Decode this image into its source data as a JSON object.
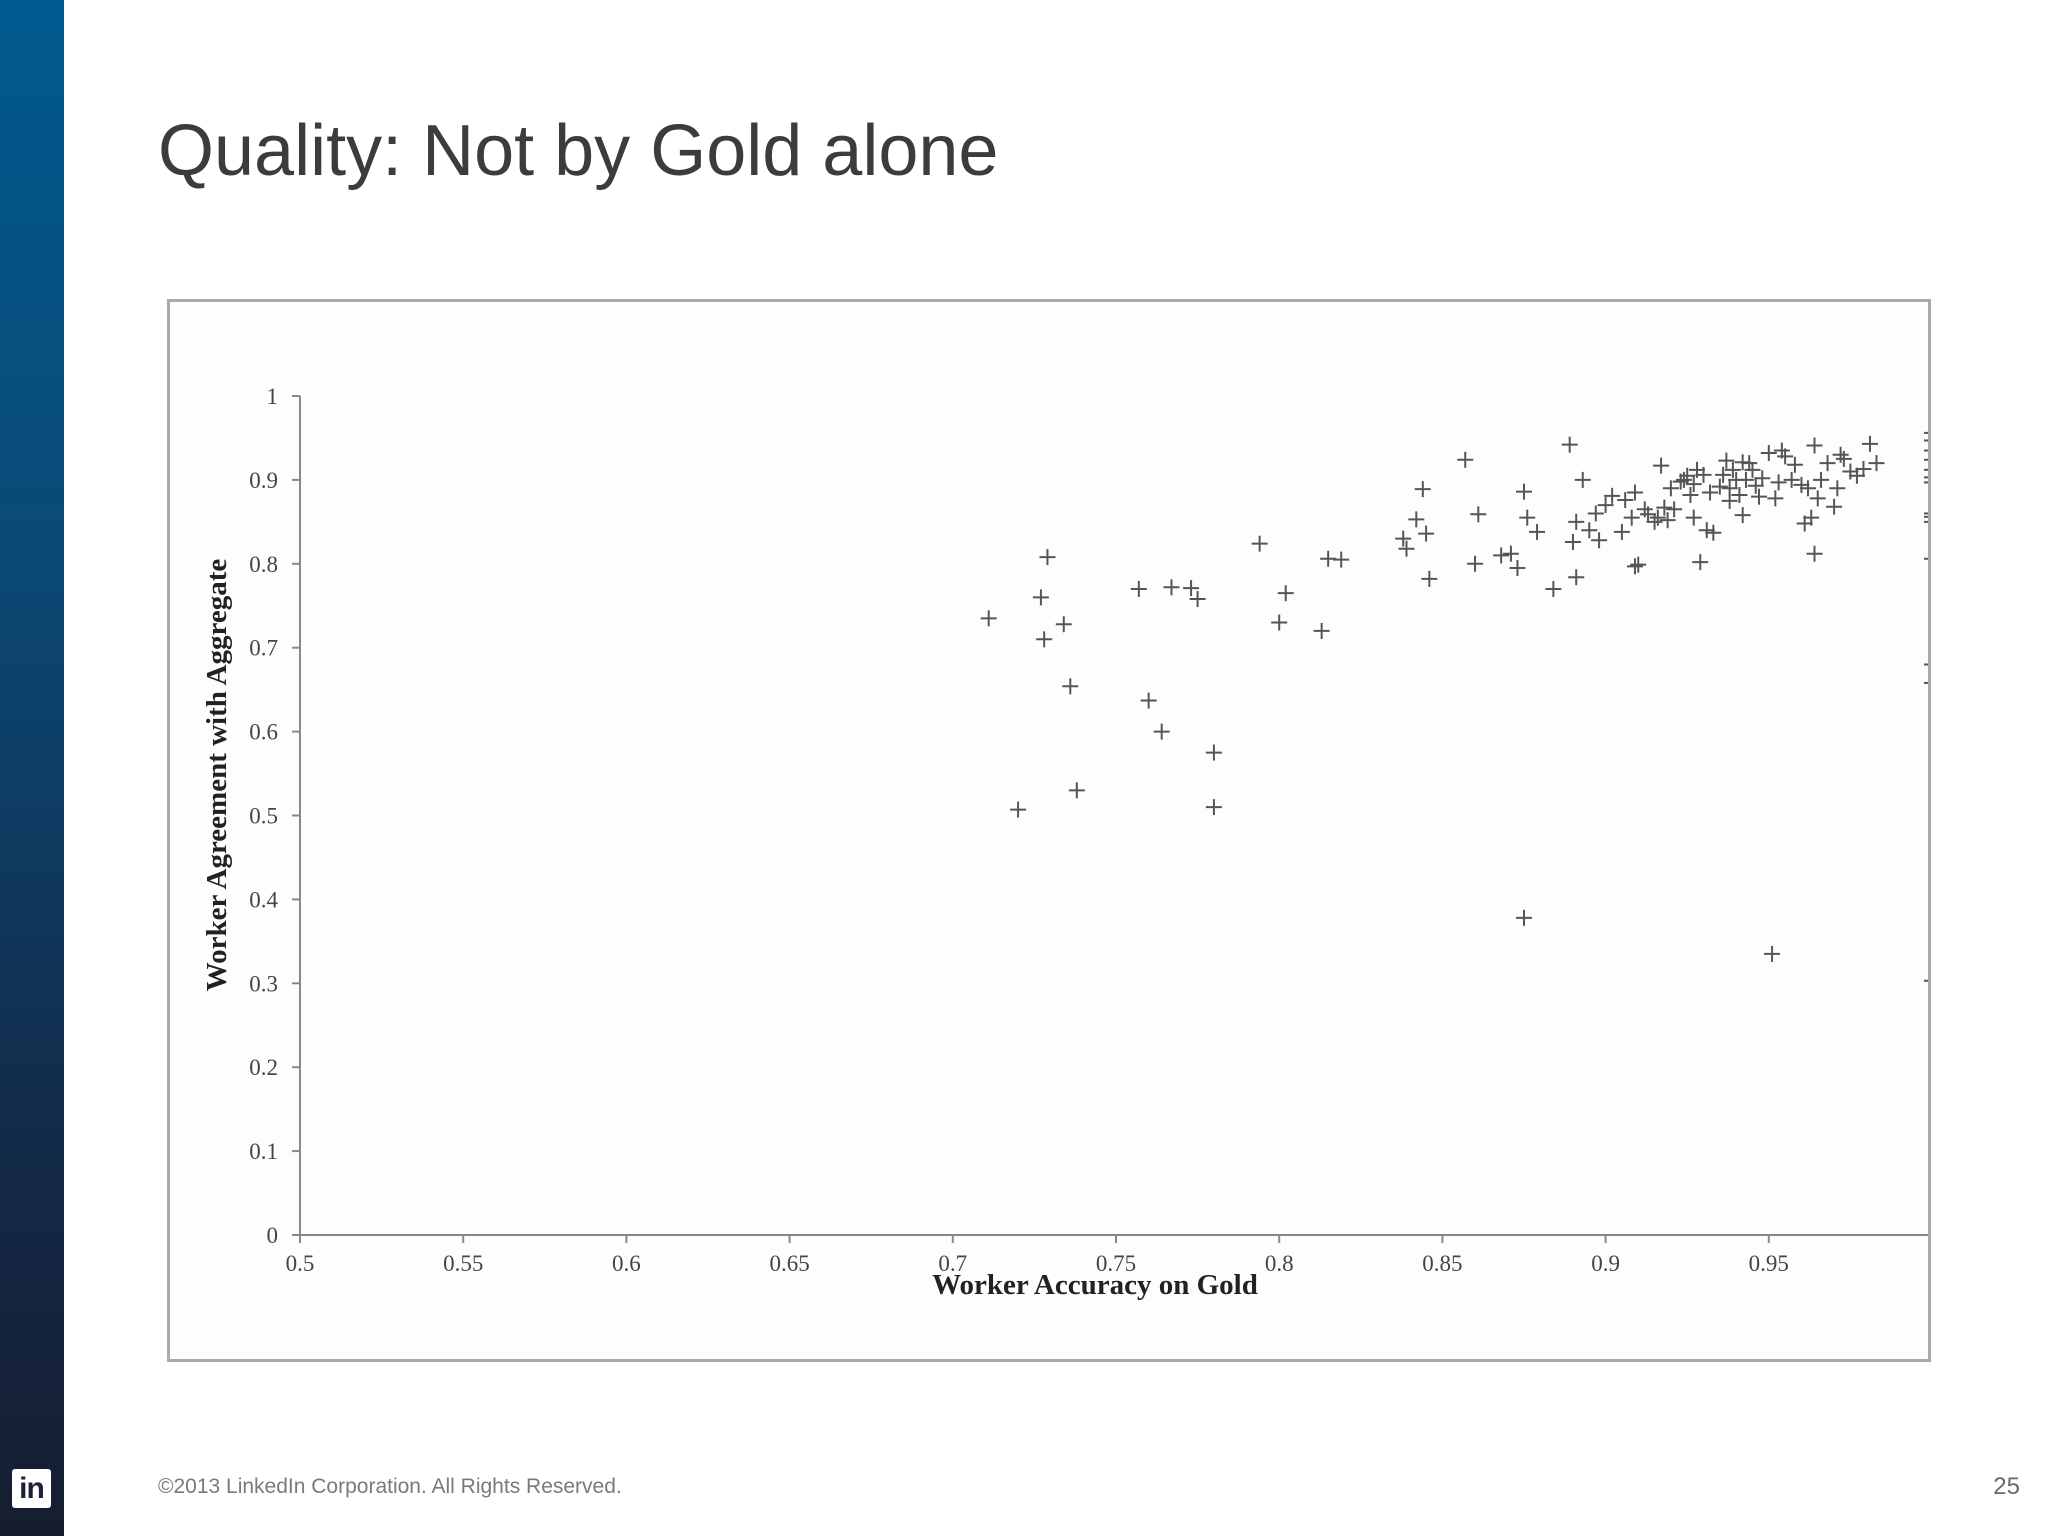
{
  "slide": {
    "title": "Quality: Not by Gold alone",
    "footer": "©2013 LinkedIn Corporation. All Rights Reserved.",
    "page_number": "25",
    "logo_text": "in",
    "colors": {
      "sidebar_top": "#005a8f",
      "sidebar_bottom": "#161d30",
      "marker": "#555555"
    }
  },
  "chart_data": {
    "type": "scatter",
    "title": "",
    "xlabel": "Worker Accuracy on Gold",
    "ylabel": "Worker Agreement with Aggregate",
    "xlim": [
      0.5,
      1
    ],
    "ylim": [
      0,
      1
    ],
    "xticks": [
      0.5,
      0.55,
      0.6,
      0.65,
      0.7,
      0.75,
      0.8,
      0.85,
      0.9,
      0.95,
      1
    ],
    "xtick_labels": [
      "0.5",
      "0.55",
      "0.6",
      "0.65",
      "0.7",
      "0.75",
      "0.8",
      "0.85",
      "0.9",
      "0.95",
      "1"
    ],
    "yticks": [
      0,
      0.1,
      0.2,
      0.3,
      0.4,
      0.5,
      0.6,
      0.7,
      0.8,
      0.9,
      1
    ],
    "ytick_labels": [
      "0",
      "0.1",
      "0.2",
      "0.3",
      "0.4",
      "0.5",
      "0.6",
      "0.7",
      "0.8",
      "0.9",
      "1"
    ],
    "grid": false,
    "marker": "+",
    "points": [
      [
        0.711,
        0.735
      ],
      [
        0.72,
        0.507
      ],
      [
        0.727,
        0.76
      ],
      [
        0.728,
        0.71
      ],
      [
        0.729,
        0.808
      ],
      [
        0.734,
        0.728
      ],
      [
        0.736,
        0.654
      ],
      [
        0.738,
        0.53
      ],
      [
        0.757,
        0.77
      ],
      [
        0.76,
        0.637
      ],
      [
        0.764,
        0.6
      ],
      [
        0.767,
        0.772
      ],
      [
        0.773,
        0.771
      ],
      [
        0.775,
        0.758
      ],
      [
        0.78,
        0.575
      ],
      [
        0.78,
        0.51
      ],
      [
        0.794,
        0.824
      ],
      [
        0.8,
        0.73
      ],
      [
        0.802,
        0.765
      ],
      [
        0.813,
        0.72
      ],
      [
        0.815,
        0.806
      ],
      [
        0.819,
        0.805
      ],
      [
        0.838,
        0.83
      ],
      [
        0.839,
        0.818
      ],
      [
        0.842,
        0.853
      ],
      [
        0.844,
        0.889
      ],
      [
        0.845,
        0.836
      ],
      [
        0.846,
        0.782
      ],
      [
        0.857,
        0.924
      ],
      [
        0.86,
        0.8
      ],
      [
        0.861,
        0.859
      ],
      [
        0.868,
        0.81
      ],
      [
        0.871,
        0.812
      ],
      [
        0.873,
        0.795
      ],
      [
        0.875,
        0.886
      ],
      [
        0.875,
        0.378
      ],
      [
        0.876,
        0.855
      ],
      [
        0.879,
        0.838
      ],
      [
        0.884,
        0.77
      ],
      [
        0.889,
        0.942
      ],
      [
        0.89,
        0.826
      ],
      [
        0.891,
        0.85
      ],
      [
        0.891,
        0.784
      ],
      [
        0.893,
        0.9
      ],
      [
        0.895,
        0.84
      ],
      [
        0.897,
        0.86
      ],
      [
        0.898,
        0.828
      ],
      [
        0.9,
        0.87
      ],
      [
        0.902,
        0.881
      ],
      [
        0.905,
        0.838
      ],
      [
        0.906,
        0.876
      ],
      [
        0.908,
        0.855
      ],
      [
        0.909,
        0.885
      ],
      [
        0.909,
        0.797
      ],
      [
        0.91,
        0.799
      ],
      [
        0.912,
        0.865
      ],
      [
        0.913,
        0.859
      ],
      [
        0.915,
        0.85
      ],
      [
        0.916,
        0.855
      ],
      [
        0.917,
        0.917
      ],
      [
        0.918,
        0.867
      ],
      [
        0.919,
        0.852
      ],
      [
        0.92,
        0.89
      ],
      [
        0.921,
        0.865
      ],
      [
        0.923,
        0.898
      ],
      [
        0.924,
        0.9
      ],
      [
        0.925,
        0.905
      ],
      [
        0.926,
        0.882
      ],
      [
        0.927,
        0.895
      ],
      [
        0.927,
        0.855
      ],
      [
        0.928,
        0.912
      ],
      [
        0.929,
        0.802
      ],
      [
        0.93,
        0.906
      ],
      [
        0.931,
        0.84
      ],
      [
        0.932,
        0.885
      ],
      [
        0.933,
        0.837
      ],
      [
        0.935,
        0.892
      ],
      [
        0.936,
        0.906
      ],
      [
        0.937,
        0.923
      ],
      [
        0.938,
        0.89
      ],
      [
        0.938,
        0.875
      ],
      [
        0.939,
        0.912
      ],
      [
        0.94,
        0.9
      ],
      [
        0.941,
        0.882
      ],
      [
        0.942,
        0.921
      ],
      [
        0.942,
        0.858
      ],
      [
        0.943,
        0.9
      ],
      [
        0.944,
        0.92
      ],
      [
        0.945,
        0.912
      ],
      [
        0.946,
        0.893
      ],
      [
        0.947,
        0.88
      ],
      [
        0.948,
        0.902
      ],
      [
        0.95,
        0.932
      ],
      [
        0.951,
        0.335
      ],
      [
        0.952,
        0.878
      ],
      [
        0.953,
        0.897
      ],
      [
        0.954,
        0.935
      ],
      [
        0.955,
        0.928
      ],
      [
        0.957,
        0.9
      ],
      [
        0.958,
        0.918
      ],
      [
        0.96,
        0.894
      ],
      [
        0.961,
        0.848
      ],
      [
        0.962,
        0.89
      ],
      [
        0.963,
        0.855
      ],
      [
        0.964,
        0.812
      ],
      [
        0.964,
        0.941
      ],
      [
        0.965,
        0.878
      ],
      [
        0.966,
        0.9
      ],
      [
        0.968,
        0.92
      ],
      [
        0.97,
        0.868
      ],
      [
        0.971,
        0.89
      ],
      [
        0.972,
        0.93
      ],
      [
        0.973,
        0.925
      ],
      [
        0.975,
        0.91
      ],
      [
        0.977,
        0.905
      ],
      [
        0.979,
        0.913
      ],
      [
        0.981,
        0.943
      ],
      [
        0.983,
        0.92
      ],
      [
        1,
        0.956
      ],
      [
        1,
        0.947
      ],
      [
        1,
        0.935
      ],
      [
        1,
        0.924
      ],
      [
        1,
        0.912
      ],
      [
        1,
        0.903
      ],
      [
        1,
        0.897
      ],
      [
        1,
        0.86
      ],
      [
        1,
        0.856
      ],
      [
        1,
        0.85
      ],
      [
        1,
        0.806
      ],
      [
        1,
        0.68
      ],
      [
        1,
        0.658
      ],
      [
        1,
        0.303
      ]
    ]
  }
}
